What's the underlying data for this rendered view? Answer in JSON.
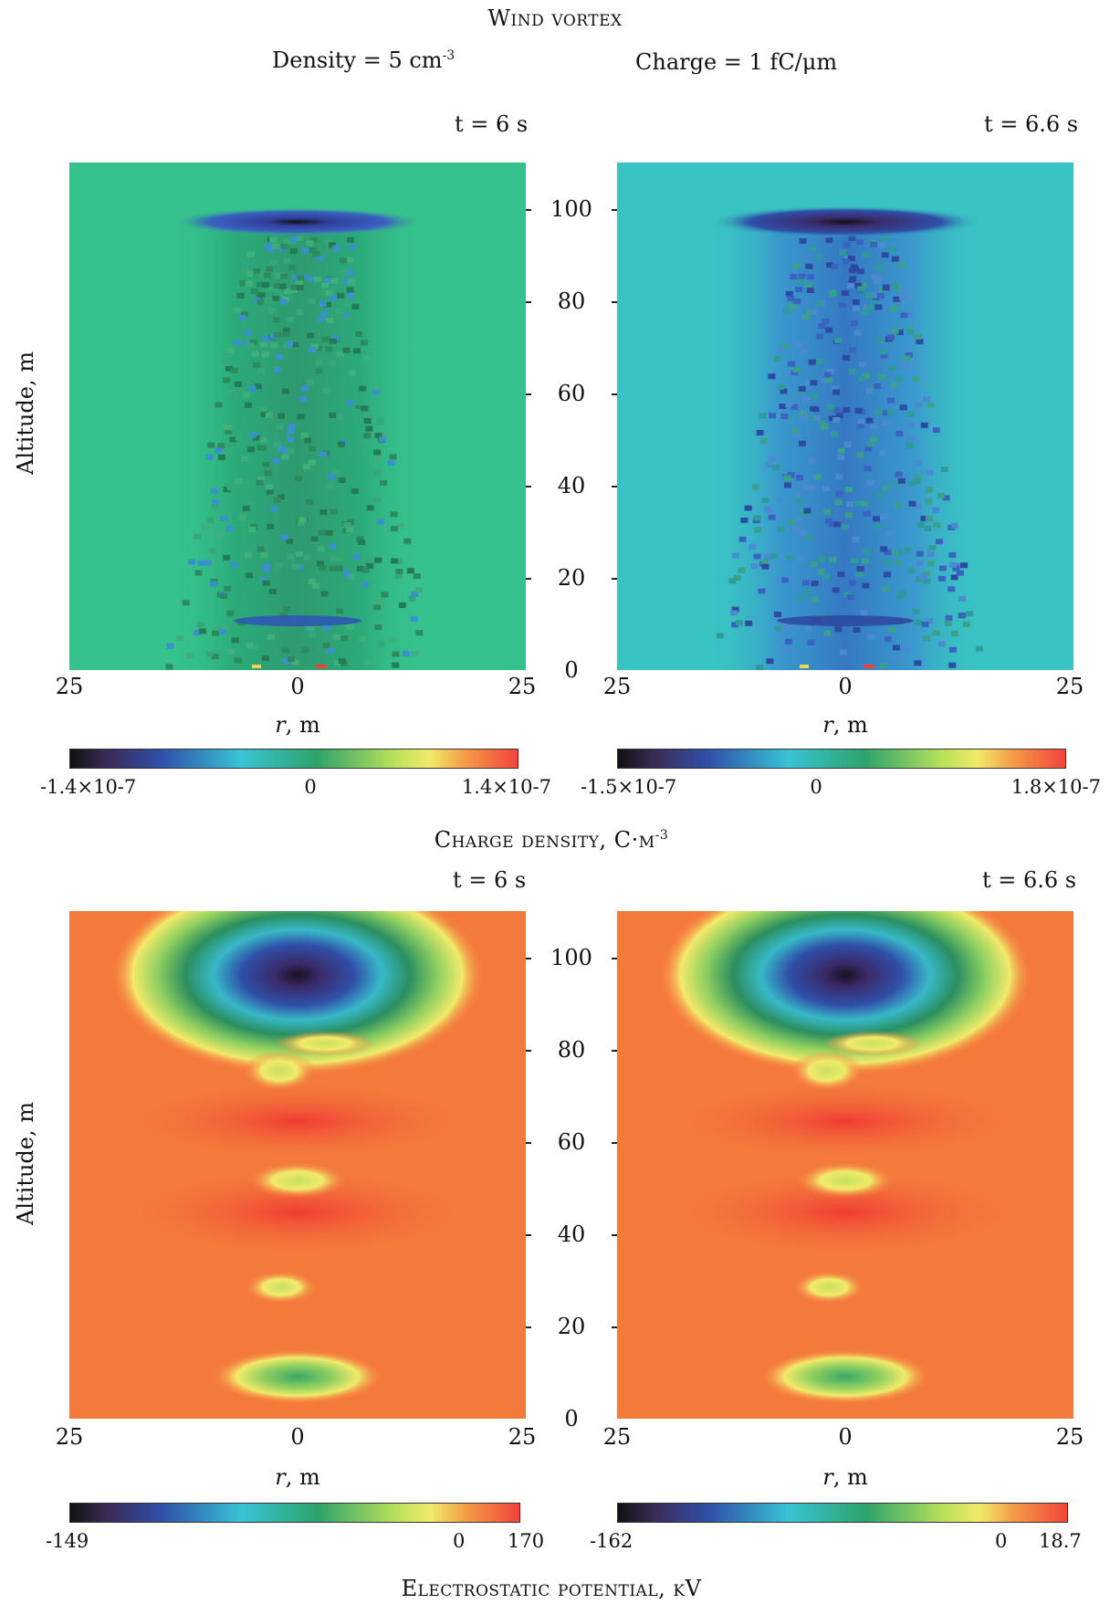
{
  "header": {
    "title": "Wind vortex",
    "density_label": "Density = 5 cm",
    "density_exp": "-3",
    "charge_label": "Charge = 1 fC/μm"
  },
  "axes": {
    "ylabel": "Altitude, m",
    "xlabel_var": "r",
    "xlabel_unit": ", m",
    "xticks": [
      "25",
      "0",
      "25"
    ],
    "yticks": [
      "100",
      "80",
      "60",
      "40",
      "20",
      "0"
    ]
  },
  "sections": {
    "charge_title": "Charge density, C·m",
    "charge_exp": "-3",
    "potential_title": "Electrostatic potential, kV"
  },
  "chart_data": [
    {
      "type": "heatmap",
      "quantity": "Charge density",
      "unit": "C·m-3",
      "time_label": "t = 6 s",
      "xlim": [
        -25,
        25
      ],
      "ylim": [
        0,
        110
      ],
      "colorbar": {
        "min": "-1.4×10-7",
        "mid": "0",
        "max": "1.4×10-7"
      },
      "background_color": "#36c28c",
      "features": [
        {
          "x": 0,
          "y": 97,
          "value": "negative minimum"
        },
        {
          "x": 0,
          "y": 9,
          "value": "negative band"
        }
      ]
    },
    {
      "type": "heatmap",
      "quantity": "Charge density",
      "unit": "C·m-3",
      "time_label": "t = 6.6 s",
      "xlim": [
        -25,
        25
      ],
      "ylim": [
        0,
        110
      ],
      "colorbar": {
        "min": "-1.5×10-7",
        "mid": "0",
        "max": "1.8×10-7"
      },
      "background_color": "#39c3c3",
      "features": [
        {
          "x": 0,
          "y": 97,
          "value": "negative minimum"
        },
        {
          "x": 0,
          "y": 9,
          "value": "negative band"
        }
      ]
    },
    {
      "type": "heatmap",
      "quantity": "Electrostatic potential",
      "unit": "kV",
      "time_label": "t = 6 s",
      "xlim": [
        -25,
        25
      ],
      "ylim": [
        0,
        110
      ],
      "colorbar": {
        "min": "-149",
        "zero": "0",
        "max": "170"
      },
      "background_color": "#f47a3c",
      "features": [
        {
          "x": 0,
          "y": 97,
          "value": "minimum (-149)"
        },
        {
          "x": -3,
          "y": 72,
          "value": "local low"
        },
        {
          "x": 0,
          "y": 62,
          "value": "high"
        },
        {
          "x": 0,
          "y": 50,
          "value": "local low"
        },
        {
          "x": 0,
          "y": 42,
          "value": "high"
        },
        {
          "x": -3,
          "y": 28,
          "value": "local low"
        },
        {
          "x": 0,
          "y": 9,
          "value": "low"
        }
      ]
    },
    {
      "type": "heatmap",
      "quantity": "Electrostatic potential",
      "unit": "kV",
      "time_label": "t = 6.6 s",
      "xlim": [
        -25,
        25
      ],
      "ylim": [
        0,
        110
      ],
      "colorbar": {
        "min": "-162",
        "zero": "0",
        "max": "18.7"
      },
      "background_color": "#f47a3c",
      "features": [
        {
          "x": 0,
          "y": 97,
          "value": "minimum (-162)"
        },
        {
          "x": -3,
          "y": 72,
          "value": "local low"
        },
        {
          "x": 0,
          "y": 62,
          "value": "high"
        },
        {
          "x": 0,
          "y": 50,
          "value": "local low"
        },
        {
          "x": 0,
          "y": 42,
          "value": "high"
        },
        {
          "x": -3,
          "y": 28,
          "value": "local low"
        },
        {
          "x": 0,
          "y": 9,
          "value": "low"
        }
      ]
    }
  ]
}
